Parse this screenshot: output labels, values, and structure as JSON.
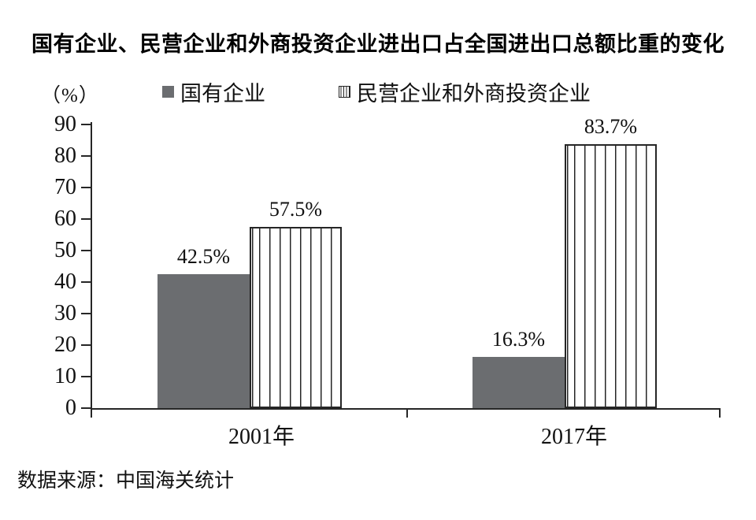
{
  "page": {
    "title": "国有企业、民营企业和外商投资企业进出口占全国进出口总额比重的变化",
    "unit_label": "（%）",
    "source": "数据来源：中国海关统计"
  },
  "legend": {
    "items": [
      {
        "label": "国有企业",
        "swatch": "solid-gray"
      },
      {
        "label": "民营企业和外商投资企业",
        "swatch": "striped-vertical"
      }
    ]
  },
  "colors": {
    "bar_solid": "#6b6d70",
    "stripe_line": "#262626",
    "axis": "#262626",
    "text": "#111111"
  },
  "chart_data": {
    "type": "bar",
    "title": "国有企业、民营企业和外商投资企业进出口占全国进出口总额比重的变化",
    "categories": [
      "2001年",
      "2017年"
    ],
    "series": [
      {
        "name": "国有企业",
        "style": "solid-gray",
        "values": [
          42.5,
          16.3
        ],
        "data_labels": [
          "42.5%",
          "16.3%"
        ]
      },
      {
        "name": "民营企业和外商投资企业",
        "style": "striped-vertical",
        "values": [
          57.5,
          83.7
        ],
        "data_labels": [
          "57.5%",
          "83.7%"
        ]
      }
    ],
    "ylabel": "（%）",
    "ylim": [
      0,
      90
    ],
    "yticks": [
      0,
      10,
      20,
      30,
      40,
      50,
      60,
      70,
      80,
      90
    ],
    "grid": false,
    "legend_position": "top",
    "source": "数据来源：中国海关统计"
  }
}
